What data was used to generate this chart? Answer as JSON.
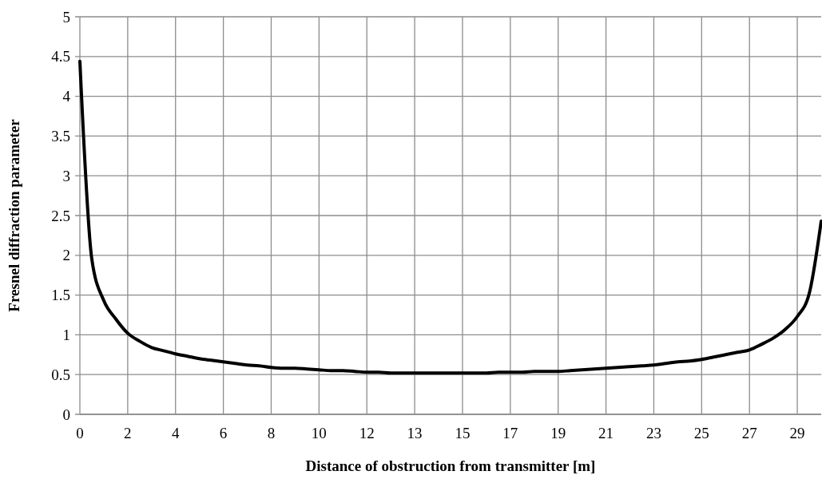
{
  "chart_data": {
    "type": "line",
    "xlabel": "Distance of obstruction from transmitter [m]",
    "ylabel": "Fresnel diffraction parameter",
    "categories": [
      "0",
      null,
      null,
      null,
      "2",
      null,
      null,
      null,
      "4",
      null,
      null,
      null,
      "6",
      null,
      null,
      null,
      "8",
      null,
      null,
      null,
      "10",
      null,
      null,
      null,
      "12",
      null,
      null,
      null,
      "13",
      null,
      null,
      null,
      "15",
      null,
      null,
      null,
      "17",
      null,
      null,
      null,
      "19",
      null,
      null,
      null,
      "21",
      null,
      null,
      null,
      "23",
      null,
      null,
      null,
      "25",
      null,
      null,
      null,
      "27",
      null,
      null,
      null,
      "29",
      null,
      null
    ],
    "ylim": [
      0,
      5
    ],
    "yticks": [
      0,
      0.5,
      1,
      1.5,
      2,
      2.5,
      3,
      3.5,
      4,
      4.5,
      5
    ],
    "grid": true,
    "marker": "none",
    "line_style": "solid",
    "series": [
      {
        "color": "#000000",
        "values": [
          4.44,
          1.95,
          1.43,
          1.2,
          1.02,
          0.92,
          0.84,
          0.8,
          0.76,
          0.73,
          0.7,
          0.68,
          0.66,
          0.64,
          0.62,
          0.61,
          0.59,
          0.58,
          0.58,
          0.57,
          0.56,
          0.55,
          0.55,
          0.54,
          0.53,
          0.53,
          0.52,
          0.52,
          0.52,
          0.52,
          0.52,
          0.52,
          0.52,
          0.52,
          0.52,
          0.53,
          0.53,
          0.53,
          0.54,
          0.54,
          0.54,
          0.55,
          0.56,
          0.57,
          0.58,
          0.59,
          0.6,
          0.61,
          0.62,
          0.64,
          0.66,
          0.67,
          0.69,
          0.72,
          0.75,
          0.78,
          0.81,
          0.88,
          0.96,
          1.07,
          1.23,
          1.52,
          2.43
        ]
      }
    ]
  }
}
